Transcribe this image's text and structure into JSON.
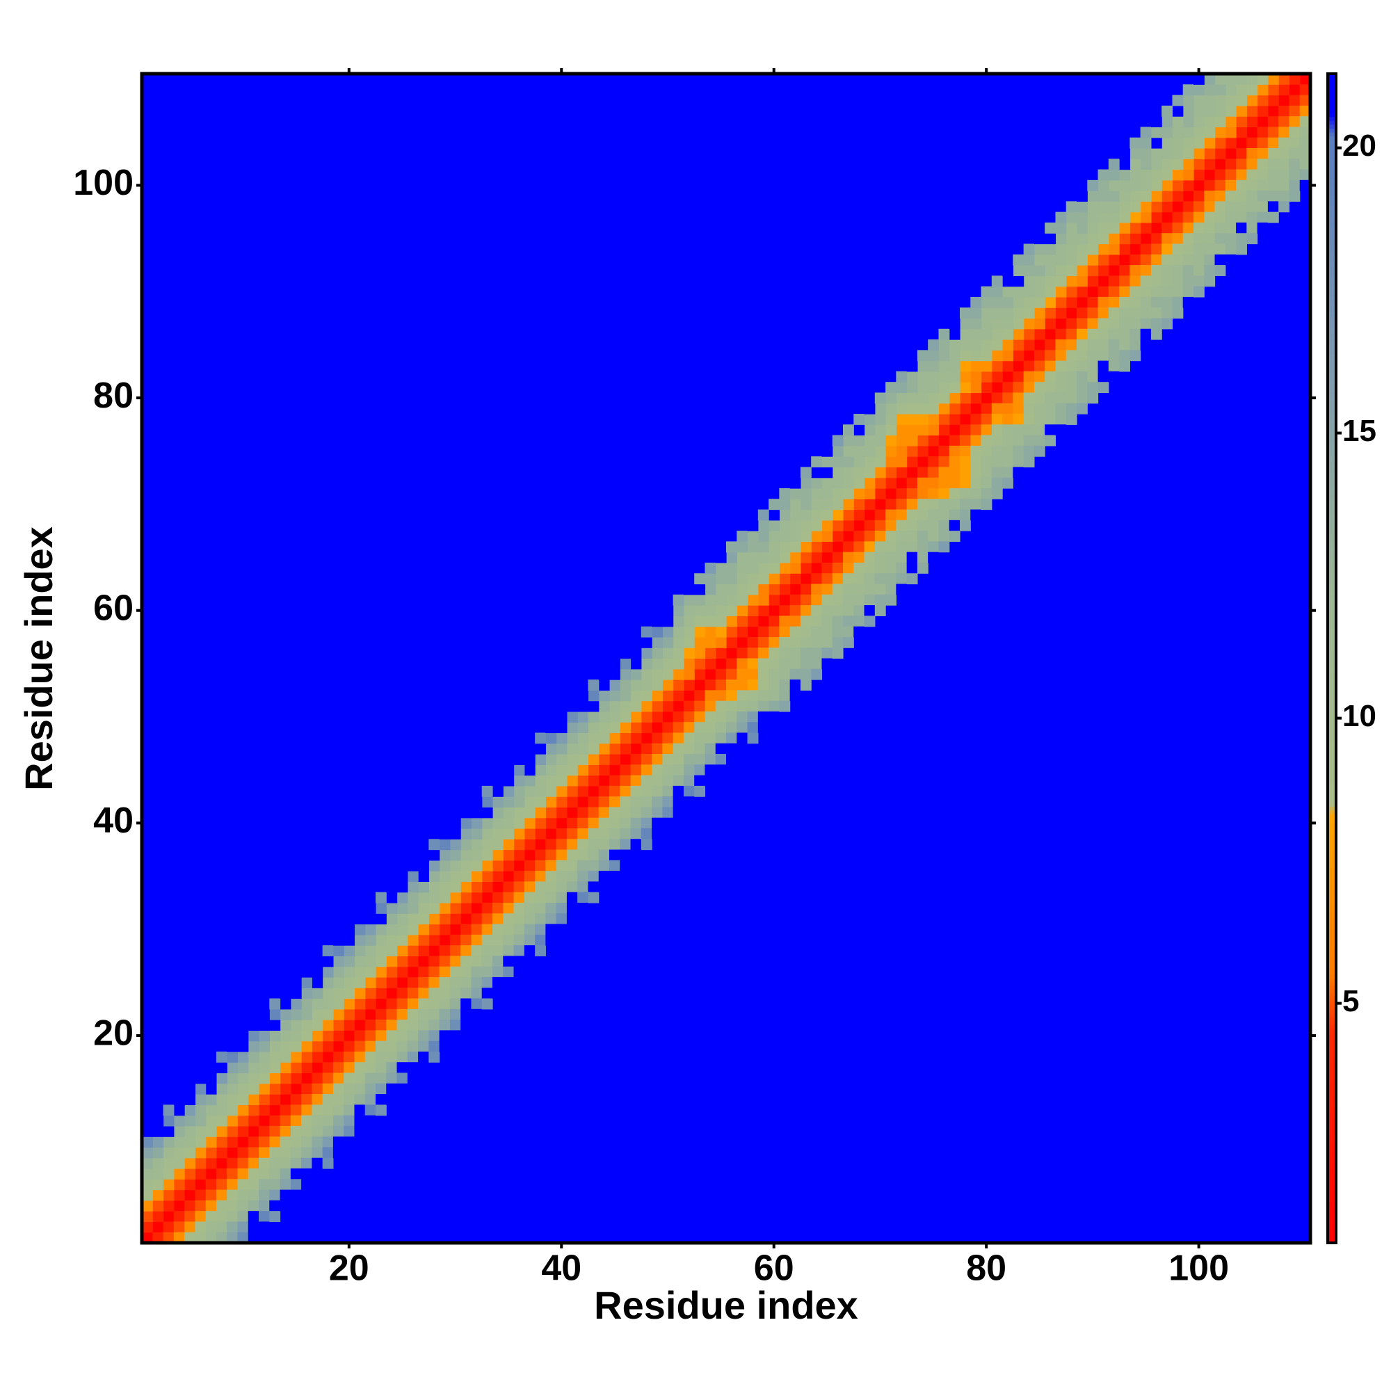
{
  "chart_data": {
    "type": "heatmap",
    "xlabel": "Residue index",
    "ylabel": "Residue index",
    "xlim": [
      0.5,
      110.5
    ],
    "ylim": [
      0.5,
      110.5
    ],
    "xticks": [
      20,
      40,
      60,
      80,
      100
    ],
    "yticks": [
      20,
      40,
      60,
      80,
      100
    ],
    "zlim": [
      0.8,
      21.3
    ],
    "zticks": [
      5,
      10,
      15,
      20
    ],
    "background": "#0000ff",
    "colorscale": [
      [
        0.8,
        "#ff0000"
      ],
      [
        4.5,
        "#ff2a00"
      ],
      [
        5.5,
        "#ff7a00"
      ],
      [
        8.3,
        "#ffa500"
      ],
      [
        8.5,
        "#a9bd8a"
      ],
      [
        12,
        "#9db892"
      ],
      [
        16,
        "#7f9db0"
      ],
      [
        20.2,
        "#5a7dbe"
      ],
      [
        20.6,
        "#0000ff"
      ],
      [
        21.3,
        "#0000ff"
      ]
    ],
    "values": [
      [
        1,
        1,
        1,
        1,
        1,
        1,
        1,
        1,
        1,
        1,
        1,
        1,
        1,
        1,
        1,
        1,
        1,
        1,
        1,
        1,
        1,
        1,
        1,
        1,
        1,
        1,
        1,
        1,
        1,
        1,
        1,
        1,
        1,
        1,
        1,
        1,
        1,
        1,
        1,
        1,
        1,
        1,
        1,
        1,
        1,
        1,
        1,
        1,
        1,
        1,
        1,
        1,
        1,
        1,
        1,
        1,
        1,
        1,
        1,
        1,
        1,
        1,
        1,
        1,
        1,
        1,
        1,
        1,
        1,
        1,
        1,
        1,
        1,
        1,
        1,
        1,
        1,
        1,
        1,
        1,
        1,
        1,
        1,
        1,
        1,
        1,
        1,
        1,
        1,
        1,
        1,
        1,
        1,
        1,
        1,
        1,
        1,
        1,
        1,
        1,
        1,
        1,
        1,
        1,
        1,
        1,
        1,
        1,
        1,
        1
      ],
      [
        4,
        4,
        4,
        4,
        4,
        4,
        4,
        4,
        4,
        4,
        4,
        4,
        4,
        4,
        4,
        4,
        4,
        4,
        4,
        4,
        4,
        4,
        4,
        4,
        4,
        4,
        4,
        4,
        4,
        4,
        4,
        4,
        4,
        4,
        4,
        4,
        4,
        4,
        4,
        4,
        4,
        4,
        4,
        4,
        4,
        4,
        4,
        4,
        4,
        4,
        4,
        4,
        4,
        4,
        4,
        4,
        4,
        4,
        4,
        4,
        4,
        4,
        4,
        4,
        4,
        4,
        4,
        4,
        4,
        4,
        4,
        4,
        4,
        4,
        4,
        4,
        4,
        4,
        4,
        4,
        4,
        4,
        4,
        4,
        4,
        4,
        4,
        4,
        4,
        4,
        4,
        4,
        4,
        4,
        4,
        4,
        4,
        4,
        4,
        4,
        4,
        4,
        4,
        4,
        4,
        4,
        4,
        4,
        4
      ],
      [
        5,
        5,
        5,
        5,
        5,
        5,
        5,
        5,
        5,
        5,
        5,
        5,
        5,
        5,
        5,
        5,
        5,
        5,
        5,
        5,
        5,
        5,
        5,
        5,
        5,
        5,
        5,
        5,
        5,
        5,
        5,
        5,
        5,
        5,
        5,
        5,
        5,
        5,
        5,
        5,
        5,
        5,
        5,
        5,
        5,
        5,
        5,
        5,
        5,
        5,
        5,
        6,
        5,
        5,
        6,
        5,
        5,
        5,
        6,
        5,
        5,
        6,
        5,
        5,
        6,
        5,
        5,
        5,
        6,
        5,
        5,
        6,
        5,
        5,
        6,
        5,
        5,
        5,
        6,
        5,
        5,
        6,
        5,
        5,
        6,
        5,
        5,
        5,
        6,
        5,
        5,
        6,
        5,
        5,
        6,
        5,
        5,
        5,
        6,
        5,
        5,
        5,
        6,
        5,
        5,
        5,
        5,
        5
      ],
      [
        7,
        7,
        7,
        7,
        7,
        7,
        7,
        7,
        7,
        7,
        7,
        7,
        7,
        7,
        7,
        7,
        7,
        7,
        7,
        7,
        7,
        7,
        7,
        7,
        7,
        7,
        7,
        7,
        7,
        7,
        7,
        7,
        7,
        7,
        7,
        7,
        7,
        7,
        7,
        7,
        7,
        7,
        7,
        7,
        7,
        7,
        7,
        7,
        7,
        7,
        7,
        6,
        7,
        7,
        8,
        7,
        7,
        7,
        6,
        7,
        7,
        7,
        7,
        7,
        7,
        8,
        7,
        7,
        7,
        7,
        6,
        6,
        7,
        7,
        7,
        7,
        7,
        8,
        6,
        7,
        7,
        7,
        7,
        7,
        7,
        8,
        7,
        7,
        7,
        7,
        7,
        7,
        7,
        8,
        7,
        7,
        7,
        7,
        7,
        7,
        7,
        7,
        7,
        7,
        7,
        7,
        7
      ],
      [
        9,
        9,
        9,
        10,
        9,
        9,
        9,
        9,
        10,
        9,
        9,
        9,
        9,
        10,
        9,
        9,
        9,
        9,
        10,
        9,
        9,
        9,
        9,
        10,
        9,
        9,
        9,
        9,
        10,
        9,
        9,
        9,
        9,
        10,
        9,
        9,
        9,
        9,
        10,
        9,
        9,
        9,
        9,
        10,
        9,
        9,
        9,
        9,
        10,
        9,
        9,
        8,
        7,
        7,
        9,
        9,
        10,
        9,
        9,
        9,
        9,
        9,
        9,
        9,
        9,
        10,
        9,
        9,
        9,
        9,
        7,
        7,
        7,
        8,
        9,
        9,
        9,
        7,
        7,
        9,
        9,
        9,
        9,
        9,
        9,
        9,
        9,
        9,
        9,
        9,
        9,
        10,
        9,
        9,
        9,
        9,
        9,
        9,
        9,
        9,
        9,
        9,
        9,
        9,
        9,
        9
      ],
      [
        10,
        11,
        10,
        10,
        11,
        10,
        10,
        11,
        10,
        10,
        10,
        11,
        10,
        10,
        11,
        10,
        10,
        11,
        10,
        10,
        10,
        11,
        10,
        10,
        11,
        10,
        10,
        11,
        10,
        10,
        10,
        11,
        10,
        10,
        11,
        10,
        10,
        11,
        10,
        10,
        10,
        11,
        10,
        10,
        11,
        10,
        10,
        11,
        10,
        10,
        10,
        9,
        8,
        9,
        10,
        11,
        10,
        10,
        10,
        11,
        10,
        11,
        10,
        10,
        11,
        10,
        11,
        10,
        10,
        10,
        8,
        7,
        8,
        9,
        10,
        10,
        11,
        8,
        10,
        10,
        10,
        11,
        10,
        10,
        11,
        10,
        10,
        11,
        10,
        10,
        10,
        11,
        10,
        10,
        11,
        10,
        10,
        11,
        10,
        10,
        10,
        11,
        10,
        10,
        11
      ],
      [
        12,
        12,
        11,
        12,
        12,
        13,
        12,
        11,
        12,
        12,
        12,
        12,
        11,
        12,
        12,
        13,
        12,
        11,
        12,
        12,
        12,
        12,
        11,
        12,
        12,
        13,
        12,
        11,
        12,
        12,
        12,
        12,
        11,
        12,
        12,
        13,
        12,
        11,
        12,
        12,
        12,
        12,
        11,
        12,
        12,
        13,
        12,
        11,
        12,
        12,
        11,
        10,
        9,
        11,
        12,
        12,
        11,
        12,
        12,
        11,
        12,
        11,
        12,
        11,
        12,
        12,
        11,
        12,
        12,
        12,
        9,
        8,
        9,
        11,
        12,
        11,
        12,
        9,
        11,
        12,
        11,
        12,
        11,
        12,
        11,
        12,
        12,
        11,
        12,
        11,
        11,
        12,
        11,
        12,
        11,
        12,
        12,
        11,
        12,
        11,
        12,
        11,
        12,
        12
      ],
      [
        13,
        14,
        13,
        13,
        14,
        13,
        14,
        13,
        13,
        14,
        13,
        14,
        13,
        13,
        14,
        13,
        14,
        13,
        13,
        14,
        13,
        14,
        13,
        13,
        14,
        13,
        14,
        13,
        13,
        14,
        13,
        14,
        13,
        13,
        14,
        13,
        14,
        13,
        13,
        14,
        13,
        14,
        13,
        13,
        14,
        13,
        14,
        13,
        13,
        14,
        12,
        11,
        11,
        12,
        12,
        13,
        12,
        12,
        13,
        12,
        12,
        12,
        13,
        12,
        12,
        12,
        13,
        12,
        12,
        12,
        11,
        10,
        11,
        12,
        12,
        12,
        12,
        11,
        12,
        12,
        12,
        13,
        12,
        12,
        13,
        12,
        12,
        12,
        13,
        12,
        12,
        13,
        12,
        12,
        13,
        12,
        12,
        12,
        13,
        12,
        12,
        13,
        12
      ],
      [
        15,
        16,
        21,
        15,
        16,
        15,
        21,
        16,
        15,
        16,
        15,
        16,
        21,
        15,
        16,
        15,
        21,
        16,
        15,
        16,
        15,
        16,
        21,
        15,
        16,
        15,
        21,
        16,
        15,
        16,
        15,
        16,
        21,
        15,
        16,
        15,
        21,
        16,
        15,
        16,
        15,
        16,
        21,
        15,
        16,
        15,
        21,
        16,
        15,
        16,
        13,
        12,
        13,
        14,
        13,
        13,
        12,
        13,
        14,
        13,
        13,
        12,
        13,
        13,
        21,
        13,
        12,
        13,
        13,
        13,
        12,
        12,
        13,
        12,
        13,
        13,
        12,
        12,
        13,
        12,
        13,
        12,
        21,
        13,
        12,
        13,
        13,
        12,
        13,
        12,
        13,
        12,
        13,
        12,
        13,
        21,
        13,
        12,
        13,
        12,
        13,
        12
      ],
      [
        18,
        21,
        19,
        21,
        21,
        18,
        21,
        21,
        19,
        21,
        18,
        21,
        19,
        21,
        21,
        18,
        21,
        21,
        19,
        21,
        18,
        21,
        19,
        21,
        21,
        18,
        21,
        21,
        19,
        21,
        18,
        21,
        19,
        21,
        21,
        18,
        21,
        21,
        19,
        21,
        18,
        21,
        19,
        21,
        21,
        18,
        21,
        21,
        19,
        21,
        14,
        13,
        21,
        14,
        13,
        15,
        14,
        13,
        14,
        21,
        14,
        13,
        14,
        21,
        13,
        14,
        13,
        21,
        14,
        13,
        13,
        14,
        13,
        13,
        14,
        13,
        21,
        13,
        14,
        13,
        14,
        21,
        13,
        14,
        13,
        21,
        14,
        13,
        14,
        13,
        13,
        14,
        21,
        13,
        14,
        13,
        14,
        21,
        13,
        14,
        14
      ],
      [
        21,
        21,
        17,
        21,
        21,
        21,
        21,
        18,
        21,
        21,
        21,
        21,
        17,
        21,
        21,
        21,
        21,
        18,
        21,
        21,
        21,
        21,
        17,
        21,
        21,
        21,
        21,
        18,
        21,
        21,
        21,
        21,
        17,
        21,
        21,
        21,
        21,
        18,
        21,
        21,
        21,
        21,
        17,
        21,
        21,
        21,
        21,
        18,
        21,
        21,
        15,
        21,
        14,
        16,
        21,
        14,
        15,
        21,
        16,
        14,
        14,
        21,
        15,
        14,
        21,
        16,
        14,
        15,
        21,
        14,
        14,
        15,
        21,
        14,
        15,
        14,
        21,
        14,
        15,
        14,
        15,
        21,
        14,
        15,
        21,
        14,
        15,
        14,
        21,
        15,
        14,
        15,
        21,
        14,
        15,
        21,
        14,
        15,
        14,
        21
      ]
    ]
  }
}
